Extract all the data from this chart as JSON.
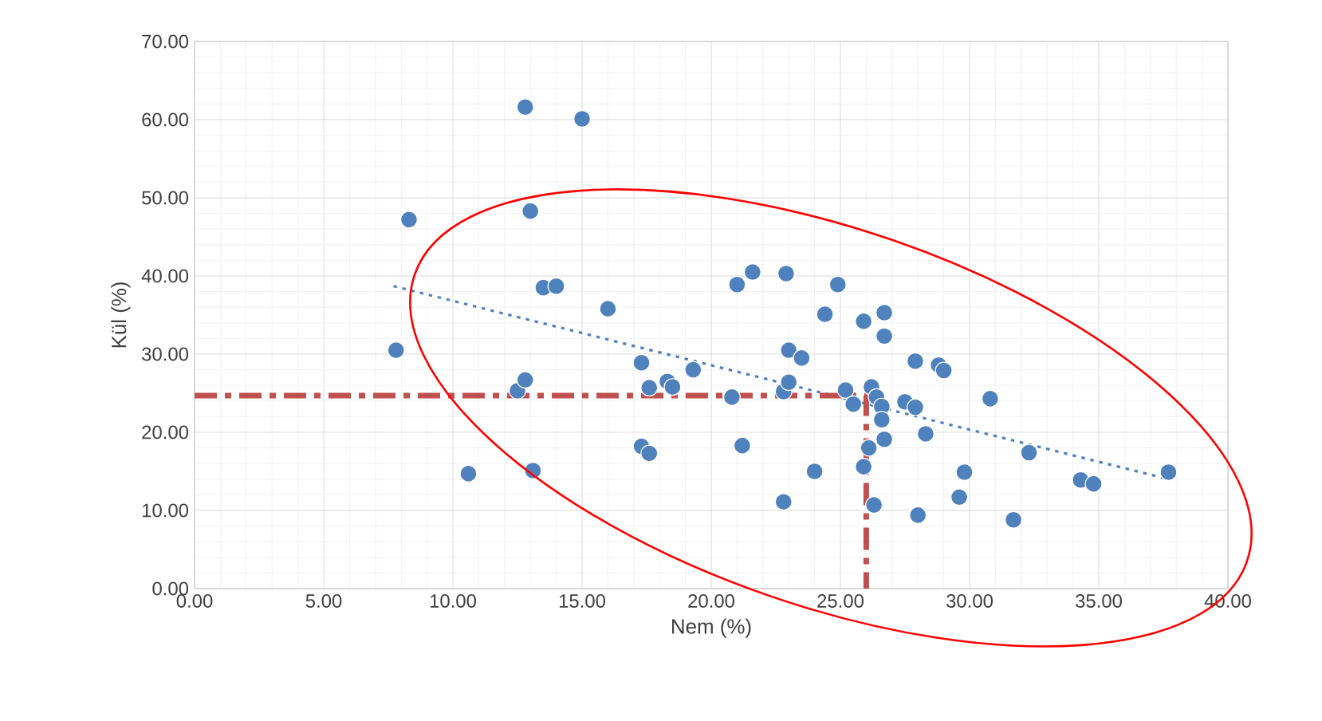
{
  "chart_data": {
    "type": "scatter",
    "xlabel": "Nem (%)",
    "ylabel": "Kül (%)",
    "xlim": [
      0,
      40
    ],
    "ylim": [
      0,
      70
    ],
    "xticks": [
      {
        "value": 0,
        "label": "0.00"
      },
      {
        "value": 5,
        "label": "5.00"
      },
      {
        "value": 10,
        "label": "10.00"
      },
      {
        "value": 15,
        "label": "15.00"
      },
      {
        "value": 20,
        "label": "20.00"
      },
      {
        "value": 25,
        "label": "25.00"
      },
      {
        "value": 30,
        "label": "30.00"
      },
      {
        "value": 35,
        "label": "35.00"
      },
      {
        "value": 40,
        "label": "40.00"
      }
    ],
    "yticks": [
      {
        "value": 0,
        "label": "0.00"
      },
      {
        "value": 10,
        "label": "10.00"
      },
      {
        "value": 20,
        "label": "20.00"
      },
      {
        "value": 30,
        "label": "30.00"
      },
      {
        "value": 40,
        "label": "40.00"
      },
      {
        "value": 50,
        "label": "50.00"
      },
      {
        "value": 60,
        "label": "60.00"
      },
      {
        "value": 70,
        "label": "70.00"
      }
    ],
    "grid": true,
    "series": [
      {
        "color": "#4f81bd",
        "marker": "circle",
        "x": [
          7.8,
          8.3,
          10.6,
          12.5,
          12.8,
          12.8,
          13.0,
          13.1,
          13.5,
          14.0,
          15.0,
          16.0,
          17.3,
          17.3,
          17.6,
          17.6,
          18.3,
          18.5,
          19.3,
          20.8,
          21.0,
          21.2,
          21.6,
          22.8,
          22.8,
          23.0,
          23.0,
          22.9,
          23.5,
          24.0,
          24.4,
          24.9,
          25.2,
          25.5,
          25.9,
          25.9,
          26.1,
          26.2,
          26.3,
          26.4,
          26.6,
          26.6,
          26.7,
          26.7,
          26.7,
          27.5,
          27.9,
          27.9,
          28.0,
          28.3,
          28.8,
          29.0,
          29.6,
          29.8,
          30.8,
          31.7,
          32.3,
          34.3,
          34.8,
          37.7
        ],
        "values": [
          30.5,
          47.2,
          14.7,
          25.3,
          26.7,
          61.6,
          48.3,
          15.1,
          38.5,
          38.7,
          60.1,
          35.8,
          28.9,
          18.2,
          25.7,
          17.3,
          26.5,
          25.8,
          28.0,
          24.5,
          38.9,
          18.3,
          40.5,
          11.1,
          25.2,
          26.4,
          30.5,
          40.3,
          29.5,
          15.0,
          35.1,
          38.9,
          25.4,
          23.6,
          34.2,
          15.6,
          18.0,
          25.8,
          10.7,
          24.5,
          23.3,
          21.6,
          35.3,
          32.3,
          19.1,
          23.9,
          29.1,
          23.2,
          9.4,
          19.8,
          28.6,
          27.9,
          11.7,
          14.9,
          24.3,
          8.8,
          17.4,
          13.9,
          13.4,
          14.9
        ]
      },
      {
        "type": "line",
        "color": "#4f81bd",
        "line_style": "dotted",
        "marker": "none",
        "x": [
          7.7,
          37.7
        ],
        "values": [
          38.7,
          14.0
        ]
      },
      {
        "type": "line",
        "color": "#c0504d",
        "line_style": "dashed",
        "marker": "none",
        "x": [
          0,
          26.0,
          26.0
        ],
        "values": [
          24.7,
          24.7,
          0
        ]
      }
    ]
  }
}
